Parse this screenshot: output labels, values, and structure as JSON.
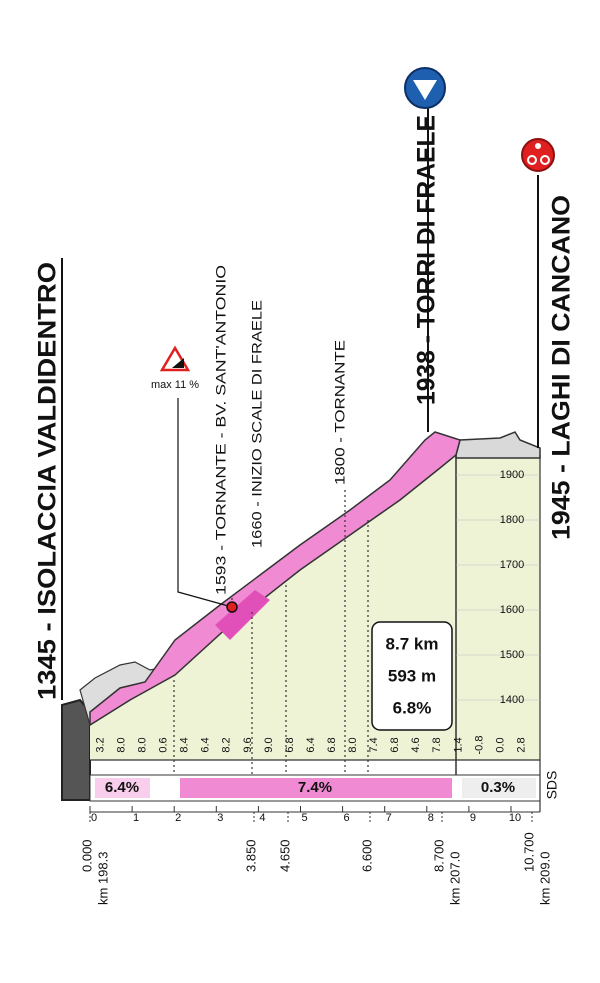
{
  "places": [
    "1345 - ISOLACCIA VALDIDENTRO",
    "1593 - TORNANTE - BV. SANT'ANTONIO",
    "1660 - INIZIO SCALE DI FRAELE",
    "1800 - TORNANTE",
    "1938 - TORRI DI FRAELE",
    "1945 - LAGHI DI CANCANO"
  ],
  "max_gradient": "max 11 %",
  "summary": {
    "length": "8.7 km",
    "gain": "593 m",
    "gradient": "6.8%"
  },
  "sector_gradients": [
    "6.4%",
    "7.4%",
    "0.3%"
  ],
  "half_km_gradients": [
    "3.2",
    "8.0",
    "8.0",
    "0.6",
    "8.4",
    "6.4",
    "8.2",
    "9.6",
    "9.0",
    "6.8",
    "6.4",
    "6.8",
    "8.0",
    "7.4",
    "6.8",
    "4.6",
    "7.8",
    "1.4",
    "-0.8",
    "0.0",
    "2.8"
  ],
  "km_ticks": [
    "0",
    "1",
    "2",
    "3",
    "4",
    "5",
    "6",
    "7",
    "8",
    "9",
    "10"
  ],
  "altitude_ticks": [
    "1400",
    "1500",
    "1600",
    "1700",
    "1800",
    "1900"
  ],
  "distance_marks": [
    {
      "distance": "0.000",
      "km": "km 198.3"
    },
    {
      "distance": "3.850"
    },
    {
      "distance": "4.650"
    },
    {
      "distance": "6.600"
    },
    {
      "distance": "8.700",
      "km": "km 207.0"
    },
    {
      "distance": "10.700",
      "km": "km 209.0"
    }
  ],
  "logo": "SDS"
}
